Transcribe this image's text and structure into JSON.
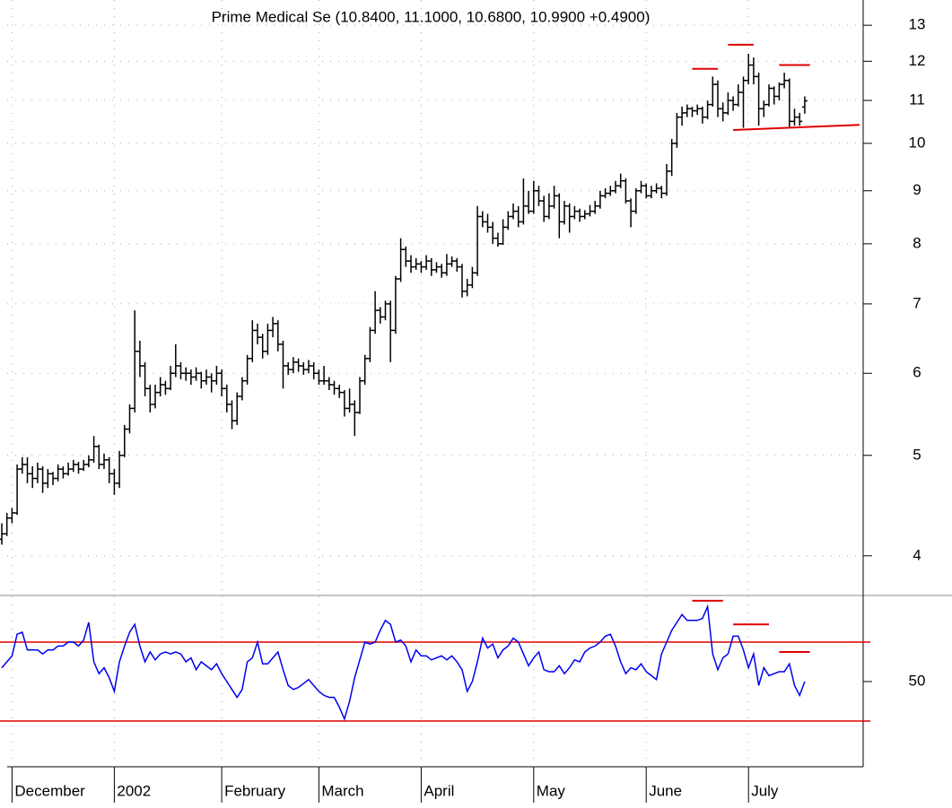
{
  "chart_data": [
    {
      "type": "ohlc",
      "title": "Prime Medical Se (10.8400, 11.1000, 10.6800, 10.9900 +0.4900)",
      "log_scale": true,
      "grid": true,
      "color": "#000000",
      "ylim": [
        3.67,
        13.75
      ],
      "yticks": [
        4,
        5,
        6,
        7,
        8,
        9,
        10,
        11,
        12,
        13
      ],
      "categories": [
        null,
        null,
        "December",
        null,
        null,
        null,
        null,
        null,
        null,
        null,
        null,
        null,
        null,
        null,
        null,
        null,
        null,
        null,
        null,
        null,
        null,
        null,
        "2002",
        null,
        null,
        null,
        null,
        null,
        null,
        null,
        null,
        null,
        null,
        null,
        null,
        null,
        null,
        null,
        null,
        null,
        null,
        null,
        null,
        "February",
        null,
        null,
        null,
        null,
        null,
        null,
        null,
        null,
        null,
        null,
        null,
        null,
        null,
        null,
        null,
        null,
        null,
        null,
        "March",
        null,
        null,
        null,
        null,
        null,
        null,
        null,
        null,
        null,
        null,
        null,
        null,
        null,
        null,
        null,
        null,
        null,
        null,
        null,
        "April",
        null,
        null,
        null,
        null,
        null,
        null,
        null,
        null,
        null,
        null,
        null,
        null,
        null,
        null,
        null,
        null,
        null,
        null,
        null,
        null,
        null,
        "May",
        null,
        null,
        null,
        null,
        null,
        null,
        null,
        null,
        null,
        null,
        null,
        null,
        null,
        null,
        null,
        null,
        null,
        null,
        null,
        null,
        null,
        "June",
        null,
        null,
        null,
        null,
        null,
        null,
        null,
        null,
        null,
        null,
        null,
        null,
        null,
        null,
        null,
        null,
        null,
        null,
        null,
        "July",
        null,
        null,
        null,
        null,
        null,
        null,
        null,
        null,
        null,
        null,
        null
      ],
      "open": [
        4.15,
        4.2,
        4.35,
        4.4,
        4.85,
        4.9,
        4.8,
        4.75,
        4.85,
        4.7,
        4.8,
        4.75,
        4.85,
        4.8,
        4.85,
        4.9,
        4.85,
        4.9,
        4.95,
        5.1,
        4.9,
        4.95,
        4.8,
        4.7,
        5.0,
        5.3,
        5.55,
        6.3,
        6.1,
        5.8,
        5.6,
        5.75,
        5.85,
        5.8,
        6.0,
        6.1,
        6.0,
        6.0,
        5.95,
        6.0,
        5.9,
        5.95,
        5.9,
        6.0,
        5.8,
        5.6,
        5.4,
        5.7,
        5.9,
        6.2,
        6.6,
        6.5,
        6.3,
        6.6,
        6.7,
        6.4,
        6.1,
        6.05,
        6.15,
        6.1,
        6.05,
        6.1,
        6.0,
        5.9,
        5.9,
        5.85,
        5.8,
        5.75,
        5.55,
        5.6,
        5.5,
        5.9,
        6.2,
        6.6,
        6.9,
        6.8,
        7.0,
        6.6,
        7.4,
        7.9,
        7.7,
        7.6,
        7.65,
        7.6,
        7.7,
        7.55,
        7.6,
        7.5,
        7.65,
        7.7,
        7.6,
        7.2,
        7.3,
        7.5,
        8.5,
        8.4,
        8.3,
        8.1,
        8.0,
        8.3,
        8.5,
        8.6,
        8.4,
        8.7,
        8.6,
        9.0,
        8.8,
        8.5,
        8.7,
        8.9,
        8.4,
        8.7,
        8.5,
        8.6,
        8.5,
        8.55,
        8.6,
        8.7,
        8.9,
        8.95,
        9.0,
        9.1,
        9.2,
        8.8,
        8.6,
        9.0,
        9.1,
        8.9,
        9.0,
        9.05,
        8.95,
        9.4,
        10.0,
        10.6,
        10.7,
        10.8,
        10.75,
        10.8,
        10.6,
        10.9,
        11.4,
        10.8,
        10.7,
        11.0,
        10.9,
        11.2,
        11.5,
        11.9,
        11.6,
        10.8,
        10.9,
        11.3,
        11.1,
        11.4,
        11.5,
        10.5,
        10.6,
        10.84
      ],
      "high": [
        4.3,
        4.4,
        4.45,
        4.9,
        4.98,
        4.98,
        4.88,
        4.92,
        4.88,
        4.85,
        4.82,
        4.9,
        4.88,
        4.92,
        4.95,
        4.93,
        4.95,
        5.0,
        5.22,
        5.12,
        5.02,
        4.98,
        4.85,
        5.05,
        5.35,
        5.6,
        6.9,
        6.45,
        6.15,
        5.85,
        5.85,
        5.95,
        5.9,
        6.1,
        6.4,
        6.15,
        6.08,
        6.05,
        6.08,
        6.02,
        6.05,
        6.0,
        6.1,
        6.05,
        5.85,
        5.65,
        5.75,
        5.95,
        6.25,
        6.75,
        6.7,
        6.55,
        6.7,
        6.8,
        6.75,
        6.45,
        6.15,
        6.22,
        6.2,
        6.15,
        6.18,
        6.15,
        6.05,
        6.1,
        5.95,
        5.9,
        5.85,
        5.78,
        5.8,
        5.65,
        5.95,
        6.25,
        6.65,
        7.2,
        6.95,
        7.05,
        7.05,
        7.45,
        8.1,
        7.95,
        7.8,
        7.75,
        7.7,
        7.8,
        7.75,
        7.68,
        7.65,
        7.82,
        7.78,
        7.75,
        7.65,
        7.4,
        7.6,
        8.7,
        8.6,
        8.55,
        8.4,
        8.2,
        8.45,
        8.6,
        8.75,
        8.7,
        9.25,
        9.0,
        9.2,
        9.1,
        8.9,
        8.95,
        9.1,
        8.95,
        8.8,
        8.75,
        8.7,
        8.65,
        8.62,
        8.72,
        8.8,
        9.0,
        9.05,
        9.1,
        9.2,
        9.35,
        9.25,
        8.85,
        9.05,
        9.2,
        9.15,
        9.1,
        9.15,
        9.1,
        9.55,
        10.1,
        10.7,
        10.85,
        10.9,
        10.85,
        10.9,
        10.85,
        11.0,
        11.6,
        11.5,
        10.95,
        11.2,
        11.1,
        11.4,
        11.6,
        12.2,
        12.1,
        11.7,
        11.0,
        11.4,
        11.35,
        11.45,
        11.7,
        11.55,
        10.8,
        10.7,
        11.1
      ],
      "low": [
        4.1,
        4.18,
        4.3,
        4.38,
        4.8,
        4.7,
        4.65,
        4.7,
        4.6,
        4.65,
        4.68,
        4.72,
        4.75,
        4.78,
        4.82,
        4.8,
        4.83,
        4.87,
        4.92,
        4.85,
        4.85,
        4.7,
        4.58,
        4.65,
        4.98,
        5.25,
        5.5,
        5.95,
        5.7,
        5.5,
        5.55,
        5.7,
        5.72,
        5.78,
        5.95,
        5.92,
        5.9,
        5.85,
        5.9,
        5.8,
        5.85,
        5.75,
        5.85,
        5.7,
        5.5,
        5.3,
        5.35,
        5.65,
        5.85,
        6.15,
        6.4,
        6.2,
        6.25,
        6.5,
        6.3,
        5.8,
        5.98,
        6.0,
        6.02,
        5.98,
        6.0,
        5.92,
        5.85,
        5.85,
        5.78,
        5.72,
        5.68,
        5.45,
        5.5,
        5.22,
        5.48,
        5.85,
        6.15,
        6.55,
        6.7,
        6.75,
        6.15,
        6.55,
        7.35,
        7.6,
        7.5,
        7.55,
        7.5,
        7.55,
        7.45,
        7.5,
        7.42,
        7.45,
        7.6,
        7.52,
        7.1,
        7.12,
        7.25,
        7.45,
        8.3,
        8.2,
        8.0,
        7.95,
        7.98,
        8.25,
        8.45,
        8.3,
        8.35,
        8.55,
        8.55,
        8.7,
        8.4,
        8.45,
        8.65,
        8.1,
        8.35,
        8.2,
        8.45,
        8.4,
        8.45,
        8.5,
        8.55,
        8.65,
        8.85,
        8.9,
        8.95,
        9.05,
        8.75,
        8.3,
        8.55,
        8.95,
        8.85,
        8.85,
        8.95,
        8.85,
        8.9,
        9.3,
        9.9,
        10.4,
        10.6,
        10.6,
        10.65,
        10.45,
        10.55,
        10.85,
        10.6,
        10.5,
        10.65,
        10.75,
        10.85,
        10.35,
        11.4,
        11.4,
        10.4,
        10.6,
        10.85,
        10.9,
        11.0,
        11.3,
        10.35,
        10.4,
        10.4,
        10.68
      ],
      "close": [
        4.2,
        4.35,
        4.4,
        4.85,
        4.9,
        4.8,
        4.75,
        4.85,
        4.7,
        4.8,
        4.75,
        4.85,
        4.8,
        4.85,
        4.9,
        4.85,
        4.9,
        4.95,
        5.1,
        4.9,
        4.95,
        4.8,
        4.7,
        5.0,
        5.3,
        5.55,
        6.3,
        6.1,
        5.8,
        5.6,
        5.75,
        5.85,
        5.8,
        6.0,
        6.1,
        6.0,
        6.0,
        5.95,
        6.0,
        5.9,
        5.95,
        5.9,
        6.0,
        5.8,
        5.6,
        5.4,
        5.7,
        5.9,
        6.2,
        6.6,
        6.5,
        6.3,
        6.6,
        6.7,
        6.4,
        6.1,
        6.05,
        6.15,
        6.1,
        6.05,
        6.1,
        6.0,
        5.9,
        5.9,
        5.85,
        5.8,
        5.75,
        5.55,
        5.6,
        5.5,
        5.9,
        6.2,
        6.6,
        6.9,
        6.8,
        7.0,
        6.6,
        7.4,
        7.9,
        7.7,
        7.6,
        7.65,
        7.6,
        7.7,
        7.55,
        7.6,
        7.5,
        7.65,
        7.7,
        7.6,
        7.2,
        7.3,
        7.5,
        8.5,
        8.4,
        8.3,
        8.1,
        8.0,
        8.3,
        8.5,
        8.6,
        8.4,
        8.7,
        8.6,
        9.0,
        8.8,
        8.5,
        8.7,
        8.9,
        8.4,
        8.7,
        8.5,
        8.6,
        8.5,
        8.55,
        8.6,
        8.7,
        8.9,
        8.95,
        9.0,
        9.1,
        9.2,
        8.8,
        8.6,
        9.0,
        9.1,
        8.9,
        9.0,
        9.05,
        8.95,
        9.4,
        10.0,
        10.6,
        10.7,
        10.8,
        10.75,
        10.8,
        10.6,
        10.9,
        11.4,
        10.8,
        10.7,
        11.0,
        10.9,
        11.2,
        11.5,
        11.9,
        11.6,
        10.8,
        10.9,
        11.3,
        11.1,
        11.4,
        11.5,
        10.5,
        10.6,
        10.5,
        10.99
      ],
      "lines": [
        {
          "color": "#e00000",
          "x": [
            135,
            140
          ],
          "y": [
            11.8,
            11.8
          ]
        },
        {
          "color": "#e00000",
          "x": [
            142,
            147
          ],
          "y": [
            12.45,
            12.45
          ]
        },
        {
          "color": "#e00000",
          "x": [
            152,
            158
          ],
          "y": [
            11.9,
            11.9
          ]
        },
        {
          "color": "#e00000",
          "x": [
            143,
            167.7
          ],
          "y": [
            10.3,
            10.42
          ]
        }
      ]
    },
    {
      "type": "line",
      "color": "#0000ee",
      "grid": true,
      "ylim": [
        6.8,
        93.2
      ],
      "yticks": [
        50
      ],
      "hlines": [
        30,
        70
      ],
      "hline_color": "#e00000",
      "values": [
        57,
        60,
        63,
        74,
        75,
        66,
        66,
        66,
        64,
        66,
        66,
        68,
        68,
        70,
        70,
        68,
        71,
        80,
        60,
        54,
        57,
        52,
        45,
        60,
        68,
        75,
        79,
        68,
        60,
        65,
        61,
        64,
        65,
        64,
        65,
        64,
        60,
        62,
        56,
        60,
        58,
        56,
        59,
        54,
        50,
        46,
        42,
        46,
        60,
        62,
        70,
        59,
        59,
        62,
        65,
        56,
        48,
        46,
        47,
        49,
        51,
        48,
        45,
        43,
        42,
        42,
        37,
        31,
        40,
        52,
        61,
        70,
        69,
        70,
        76,
        81,
        79,
        70,
        71,
        68,
        60,
        66,
        63,
        63,
        61,
        62,
        63,
        61,
        63,
        60,
        56,
        45,
        50,
        60,
        72,
        67,
        69,
        62,
        66,
        68,
        72,
        70,
        64,
        58,
        62,
        65,
        56,
        55,
        55,
        58,
        54,
        57,
        61,
        60,
        65,
        67,
        68,
        70,
        73,
        74,
        68,
        60,
        54,
        57,
        56,
        59,
        55,
        53,
        51,
        64,
        70,
        76,
        80,
        84,
        81,
        81,
        81,
        82,
        88,
        64,
        56,
        62,
        64,
        73,
        73,
        66,
        57,
        64,
        48,
        57,
        53,
        54,
        55,
        55,
        59,
        48,
        43,
        50
      ],
      "lines": [
        {
          "color": "#e00000",
          "x": [
            135,
            141
          ],
          "y": [
            91,
            91
          ]
        },
        {
          "color": "#e00000",
          "x": [
            143,
            150
          ],
          "y": [
            79,
            79
          ]
        },
        {
          "color": "#e00000",
          "x": [
            152,
            158
          ],
          "y": [
            65,
            65
          ]
        }
      ]
    }
  ]
}
